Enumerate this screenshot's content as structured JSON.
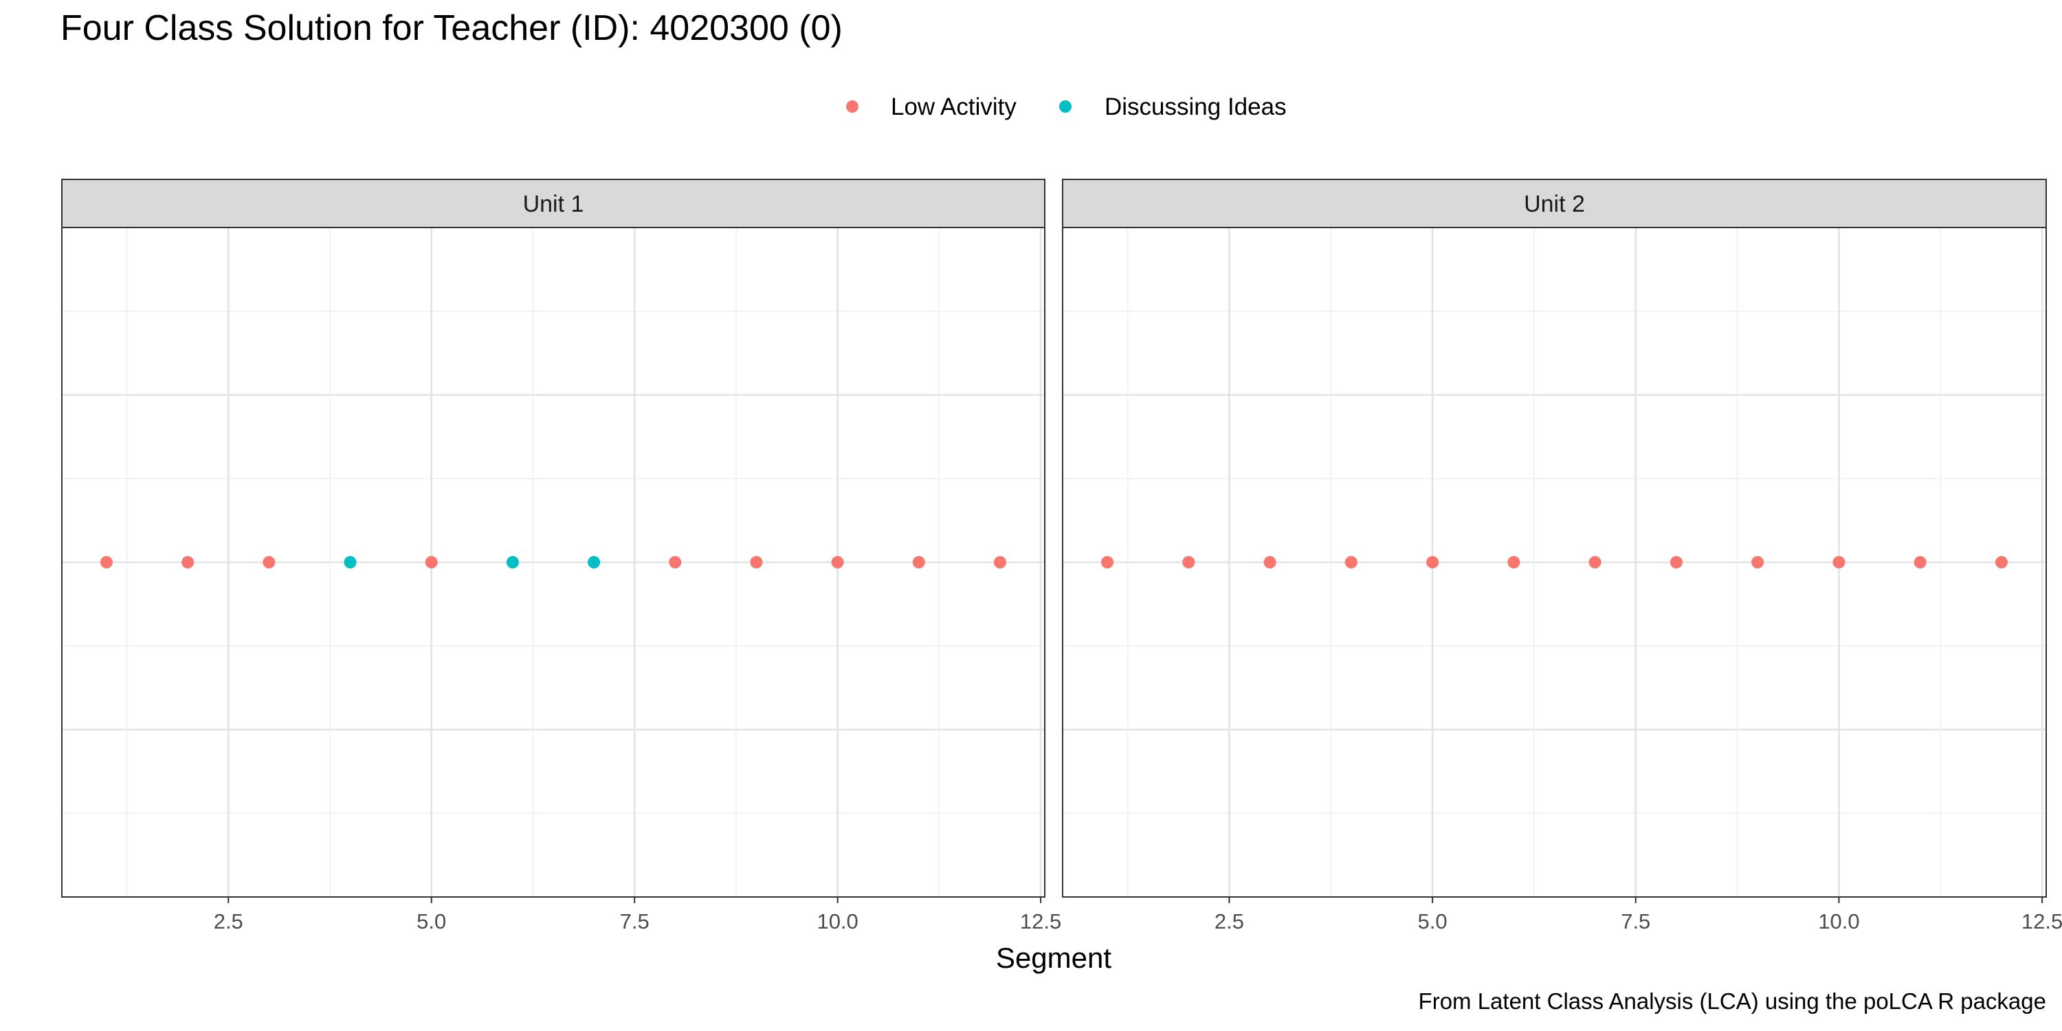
{
  "chart_data": {
    "type": "scatter",
    "title": "Four Class Solution for Teacher (ID): 4020300 (0)",
    "xlabel": "Segment",
    "ylabel": "",
    "caption": "From Latent Class Analysis (LCA) using the poLCA R package",
    "xlim": [
      0.45,
      12.55
    ],
    "xticks": [
      2.5,
      5.0,
      7.5,
      10.0,
      12.5
    ],
    "xtick_labels": [
      "2.5",
      "5.0",
      "7.5",
      "10.0",
      "12.5"
    ],
    "grid": true,
    "legend_position": "top",
    "classes": [
      {
        "name": "Low Activity",
        "color": "#F8766D"
      },
      {
        "name": "Discussing Ideas",
        "color": "#00BFC4"
      }
    ],
    "panels": [
      {
        "label": "Unit 1",
        "points": [
          {
            "x": 1,
            "class": "Low Activity"
          },
          {
            "x": 2,
            "class": "Low Activity"
          },
          {
            "x": 3,
            "class": "Low Activity"
          },
          {
            "x": 4,
            "class": "Discussing Ideas"
          },
          {
            "x": 5,
            "class": "Low Activity"
          },
          {
            "x": 6,
            "class": "Discussing Ideas"
          },
          {
            "x": 7,
            "class": "Discussing Ideas"
          },
          {
            "x": 8,
            "class": "Low Activity"
          },
          {
            "x": 9,
            "class": "Low Activity"
          },
          {
            "x": 10,
            "class": "Low Activity"
          },
          {
            "x": 11,
            "class": "Low Activity"
          },
          {
            "x": 12,
            "class": "Low Activity"
          }
        ]
      },
      {
        "label": "Unit 2",
        "points": [
          {
            "x": 1,
            "class": "Low Activity"
          },
          {
            "x": 2,
            "class": "Low Activity"
          },
          {
            "x": 3,
            "class": "Low Activity"
          },
          {
            "x": 4,
            "class": "Low Activity"
          },
          {
            "x": 5,
            "class": "Low Activity"
          },
          {
            "x": 6,
            "class": "Low Activity"
          },
          {
            "x": 7,
            "class": "Low Activity"
          },
          {
            "x": 8,
            "class": "Low Activity"
          },
          {
            "x": 9,
            "class": "Low Activity"
          },
          {
            "x": 10,
            "class": "Low Activity"
          },
          {
            "x": 11,
            "class": "Low Activity"
          },
          {
            "x": 12,
            "class": "Low Activity"
          }
        ]
      }
    ]
  }
}
